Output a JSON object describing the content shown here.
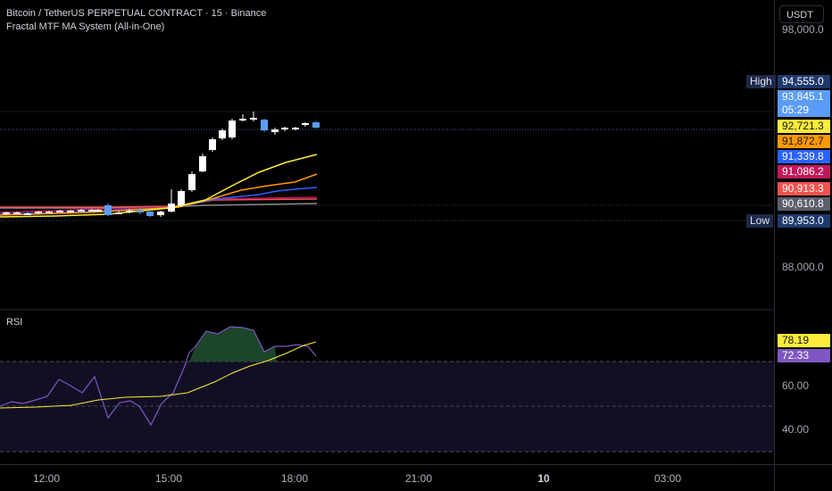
{
  "header": {
    "symbol_line": "Bitcoin / TetherUS PERPETUAL CONTRACT · 15 · Binance",
    "indicator_line": "Fractal MTF MA System (All-in-One)"
  },
  "currency_button": "USDT",
  "price_axis": {
    "ticks": [
      "98,000.0",
      "88,000.0"
    ],
    "high_label": "High",
    "low_label": "Low",
    "badges": [
      {
        "name": "high",
        "value": "94,555.0",
        "bg": "#1e3a6e",
        "fg": "#ffffff"
      },
      {
        "name": "last",
        "value": "93,845.1",
        "bg": "#5b9cf6",
        "fg": "#ffffff"
      },
      {
        "name": "countdown",
        "value": "05:29",
        "bg": "#5b9cf6",
        "fg": "#ffffff"
      },
      {
        "name": "ma-yellow",
        "value": "92,721.3",
        "bg": "#ffeb3b",
        "fg": "#131722"
      },
      {
        "name": "ma-orange",
        "value": "91,872.7",
        "bg": "#ff9800",
        "fg": "#131722"
      },
      {
        "name": "ma-blue",
        "value": "91,339.8",
        "bg": "#2962ff",
        "fg": "#ffffff"
      },
      {
        "name": "ma-magenta",
        "value": "91,086.2",
        "bg": "#c2185b",
        "fg": "#ffffff"
      },
      {
        "name": "ma-red",
        "value": "90,913.3",
        "bg": "#ef5350",
        "fg": "#ffffff"
      },
      {
        "name": "ma-gray",
        "value": "90,610.8",
        "bg": "#5d606b",
        "fg": "#ffffff"
      },
      {
        "name": "low",
        "value": "89,953.0",
        "bg": "#1e3a6e",
        "fg": "#ffffff"
      }
    ]
  },
  "rsi_pane": {
    "title": "RSI",
    "ticks": [
      "60.00",
      "40.00"
    ],
    "badges": [
      {
        "name": "rsi-ma",
        "value": "78.19",
        "bg": "#ffeb3b",
        "fg": "#131722"
      },
      {
        "name": "rsi",
        "value": "72.33",
        "bg": "#7e57c2",
        "fg": "#ffffff"
      }
    ]
  },
  "time_axis": [
    "12:00",
    "15:00",
    "18:00",
    "21:00",
    "10",
    "03:00"
  ],
  "colors": {
    "up_candle": "#ffffff",
    "down_candle": "#5b9cf6",
    "ma_yellow": "#ffeb3b",
    "ma_orange": "#ff9800",
    "ma_blue": "#2962ff",
    "ma_magenta": "#c2185b",
    "ma_red": "#ef5350",
    "rsi_line": "#7e57c2",
    "rsi_ma": "#ffeb3b",
    "axis_border": "#2a2e39"
  }
}
